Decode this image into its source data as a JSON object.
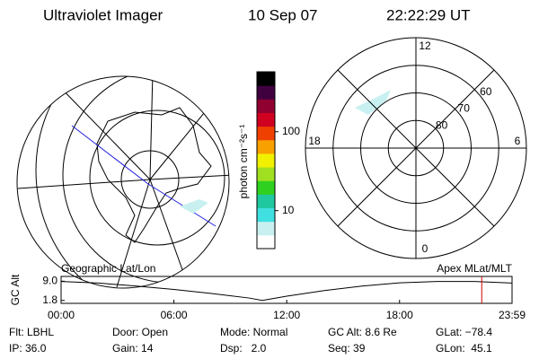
{
  "header": {
    "instrument": "Ultraviolet Imager",
    "date": "10 Sep 07",
    "time": "22:22:29 UT"
  },
  "colorbar": {
    "label": "photon cm⁻²s⁻¹",
    "log": true,
    "lim": [
      3.3,
      575
    ],
    "ticks": [
      10,
      100
    ],
    "colors": [
      "#ffffff",
      "#c8f0f0",
      "#40e0e0",
      "#20c8a0",
      "#30d020",
      "#a0e020",
      "#f0f000",
      "#f8a000",
      "#f04000",
      "#d00020",
      "#900030",
      "#400040",
      "#000000"
    ]
  },
  "mlt_map": {
    "hour_ticks": [
      12,
      18,
      6,
      0
    ],
    "lat_lim": [
      90,
      50
    ],
    "lat_ticks": [
      60,
      70,
      80
    ]
  },
  "altitude_plot": {
    "left_label": "Geographic Lat/Lon",
    "right_label": "Apex MLat/MLT",
    "ylabel": "GC Alt",
    "x": [
      0,
      2,
      4,
      6,
      8,
      10,
      10.7,
      12,
      14,
      16,
      18,
      20,
      22,
      23.983
    ],
    "values": [
      8.9,
      8.3,
      7.2,
      5.9,
      4.4,
      2.7,
      1.8,
      3.4,
      5.5,
      7.2,
      8.4,
      8.9,
      8.9,
      8.3
    ],
    "xlim": [
      0,
      23.983
    ],
    "ylim": [
      0.7,
      10.8
    ],
    "xticks": [
      {
        "value": 0,
        "label": "00:00"
      },
      {
        "value": 6,
        "label": "06:00"
      },
      {
        "value": 12,
        "label": "12:00"
      },
      {
        "value": 18,
        "label": "18:00"
      },
      {
        "value": 23.983,
        "label": "23:59"
      }
    ],
    "yticks": [
      {
        "value": 9,
        "label": "9.0"
      },
      {
        "value": 1.8,
        "label": "1.8"
      }
    ],
    "marker_x": 22.37,
    "marker_color": "#d00000"
  },
  "info": [
    [
      "Flt: LBHL",
      "Door: Open",
      "Mode: Normal",
      "GC Alt: 8.6 Re",
      "GLat: −78.4"
    ],
    [
      "IP: 36.0",
      "Gain: 14",
      "Dsp:   2.0",
      "Seq: 39",
      "GLon:  45.1"
    ]
  ]
}
